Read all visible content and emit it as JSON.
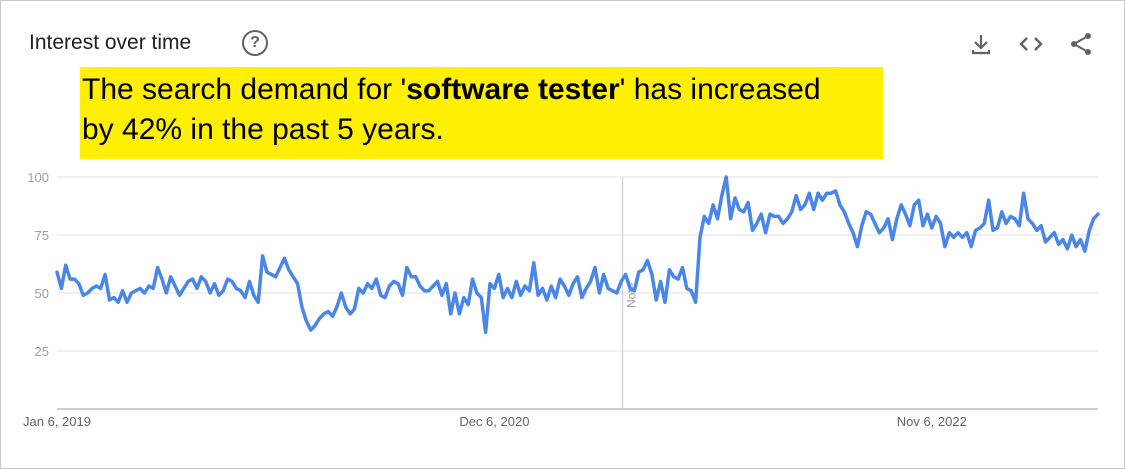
{
  "header": {
    "title": "Interest over time",
    "help_icon": "help-circle-icon",
    "actions": [
      {
        "name": "download-icon"
      },
      {
        "name": "embed-code-icon"
      },
      {
        "name": "share-icon"
      }
    ]
  },
  "callout": {
    "line1_before": "The search demand for '",
    "keyword": "software tester",
    "line1_after": "' has increased",
    "line2": "by 42% in the past 5 years.",
    "background": "#ffef00"
  },
  "chart_data": {
    "type": "line",
    "title": "Interest over time",
    "xlabel": "",
    "ylabel": "",
    "ylim": [
      0,
      100
    ],
    "yticks": [
      25,
      50,
      75,
      100
    ],
    "xtick_labels": [
      "Jan 6, 2019",
      "Dec 6, 2020",
      "Nov 6, 2022"
    ],
    "x_start": "Jan 6, 2019",
    "x_interval": "weekly",
    "annotation": "Note",
    "annotation_index": 130,
    "line_color": "#4a86e8",
    "grid": true,
    "series": [
      {
        "values": [
          59,
          52,
          62,
          56,
          56,
          54,
          49,
          50,
          52,
          53,
          52,
          58,
          47,
          48,
          46,
          51,
          46,
          50,
          51,
          52,
          50,
          53,
          52,
          61,
          56,
          50,
          57,
          53,
          49,
          52,
          55,
          56,
          52,
          57,
          55,
          50,
          54,
          49,
          51,
          56,
          55,
          52,
          51,
          48,
          55,
          49,
          46,
          66,
          59,
          58,
          57,
          61,
          65,
          60,
          57,
          54,
          44,
          38,
          34,
          36,
          39,
          41,
          42,
          40,
          44,
          50,
          44,
          41,
          43,
          52,
          50,
          54,
          52,
          56,
          49,
          48,
          53,
          55,
          54,
          49,
          61,
          57,
          57,
          53,
          51,
          51,
          53,
          55,
          49,
          54,
          41,
          50,
          41,
          48,
          45,
          56,
          50,
          48,
          33,
          54,
          52,
          58,
          48,
          52,
          48,
          55,
          49,
          53,
          51,
          63,
          49,
          52,
          47,
          53,
          48,
          56,
          53,
          49,
          54,
          57,
          48,
          52,
          55,
          61,
          50,
          58,
          52,
          51,
          50,
          55,
          58,
          52,
          51,
          59,
          60,
          64,
          58,
          47,
          55,
          46,
          60,
          57,
          56,
          61,
          52,
          51,
          46,
          74,
          83,
          80,
          88,
          82,
          92,
          100,
          82,
          91,
          86,
          85,
          89,
          77,
          80,
          84,
          76,
          84,
          83,
          83,
          80,
          82,
          85,
          92,
          86,
          88,
          93,
          86,
          93,
          90,
          93,
          93,
          94,
          88,
          85,
          80,
          76,
          70,
          79,
          85,
          84,
          80,
          76,
          78,
          82,
          73,
          82,
          88,
          84,
          79,
          88,
          90,
          79,
          84,
          78,
          83,
          80,
          70,
          76,
          74,
          76,
          74,
          76,
          70,
          77,
          78,
          80,
          90,
          77,
          78,
          85,
          80,
          83,
          82,
          79,
          93,
          82,
          80,
          77,
          79,
          72,
          74,
          76,
          71,
          73,
          69,
          75,
          70,
          73,
          68,
          77,
          82,
          84
        ]
      }
    ]
  }
}
